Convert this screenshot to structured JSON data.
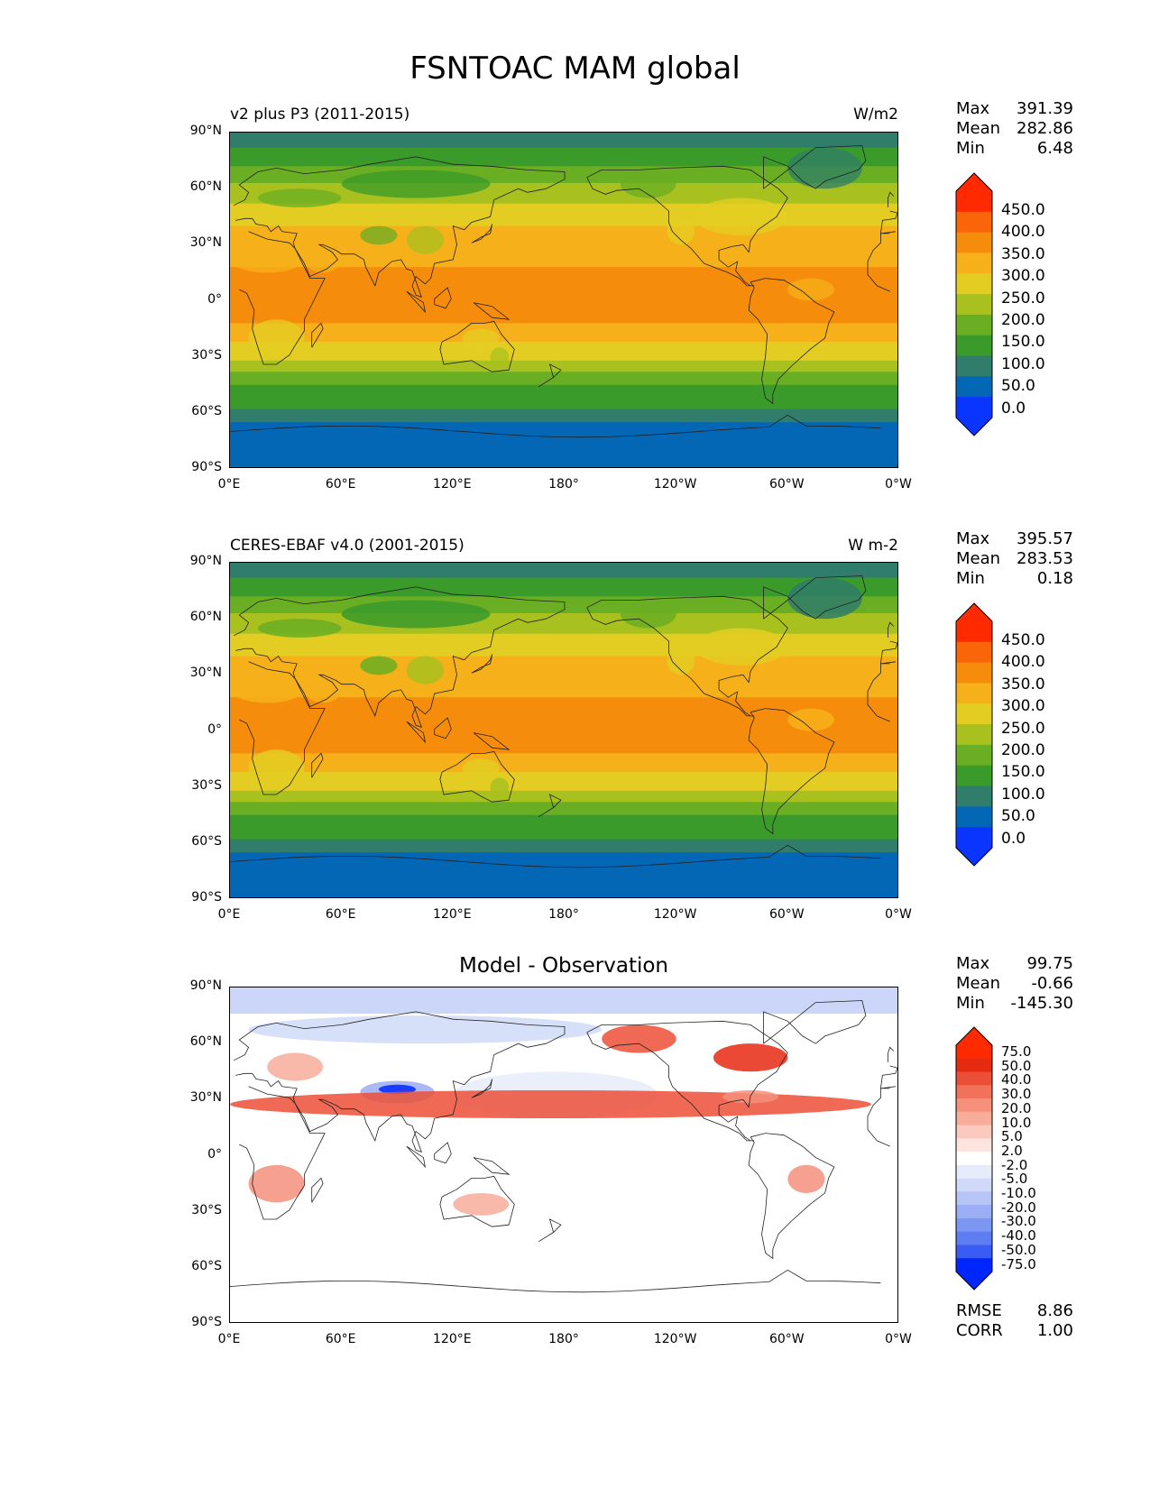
{
  "page_title": "FSNTOAC MAM global",
  "lat_labels": [
    "90°N",
    "60°N",
    "30°N",
    "0°",
    "30°S",
    "60°S",
    "90°S"
  ],
  "lon_labels": [
    "0°E",
    "60°E",
    "120°E",
    "180°",
    "120°W",
    "60°W",
    "0°W"
  ],
  "panels": [
    {
      "title_left": "v2 plus P3 (2011-2015)",
      "title_right": "W/m2",
      "stats": {
        "max_label": "Max",
        "max": "391.39",
        "mean_label": "Mean",
        "mean": "282.86",
        "min_label": "Min",
        "min": "6.48"
      },
      "colorbar_labels": [
        "450.0",
        "400.0",
        "350.0",
        "300.0",
        "250.0",
        "200.0",
        "150.0",
        "100.0",
        "50.0",
        "0.0"
      ]
    },
    {
      "title_left": "CERES-EBAF v4.0 (2001-2015)",
      "title_right": "W m-2",
      "stats": {
        "max_label": "Max",
        "max": "395.57",
        "mean_label": "Mean",
        "mean": "283.53",
        "min_label": "Min",
        "min": "0.18"
      },
      "colorbar_labels": [
        "450.0",
        "400.0",
        "350.0",
        "300.0",
        "250.0",
        "200.0",
        "150.0",
        "100.0",
        "50.0",
        "0.0"
      ]
    },
    {
      "title_center": "Model - Observation",
      "stats": {
        "max_label": "Max",
        "max": "99.75",
        "mean_label": "Mean",
        "mean": "-0.66",
        "min_label": "Min",
        "min": "-145.30"
      },
      "colorbar_labels": [
        "75.0",
        "50.0",
        "40.0",
        "30.0",
        "20.0",
        "10.0",
        "5.0",
        "2.0",
        "-2.0",
        "-5.0",
        "-10.0",
        "-20.0",
        "-30.0",
        "-40.0",
        "-50.0",
        "-75.0"
      ],
      "footer": {
        "rmse_label": "RMSE",
        "rmse": "8.86",
        "corr_label": "CORR",
        "corr": "1.00"
      }
    }
  ],
  "colors": {
    "abs_scale": [
      "#0a34ff",
      "#0467b5",
      "#2f7d6a",
      "#3a9a2a",
      "#6aae23",
      "#a8c11e",
      "#e4cd23",
      "#f6b01a",
      "#f68c0c",
      "#f96508",
      "#ff2a00"
    ],
    "diff_scale": [
      "#0026ff",
      "#3b5cf4",
      "#5d7df0",
      "#7c97f2",
      "#9badf4",
      "#b7c4f6",
      "#d0daf8",
      "#e7ecfb",
      "#ffffff",
      "#fde4de",
      "#fbc9bd",
      "#f8ad9b",
      "#f5907b",
      "#f1715b",
      "#ec4f37",
      "#e62a12",
      "#ff2a00"
    ]
  }
}
